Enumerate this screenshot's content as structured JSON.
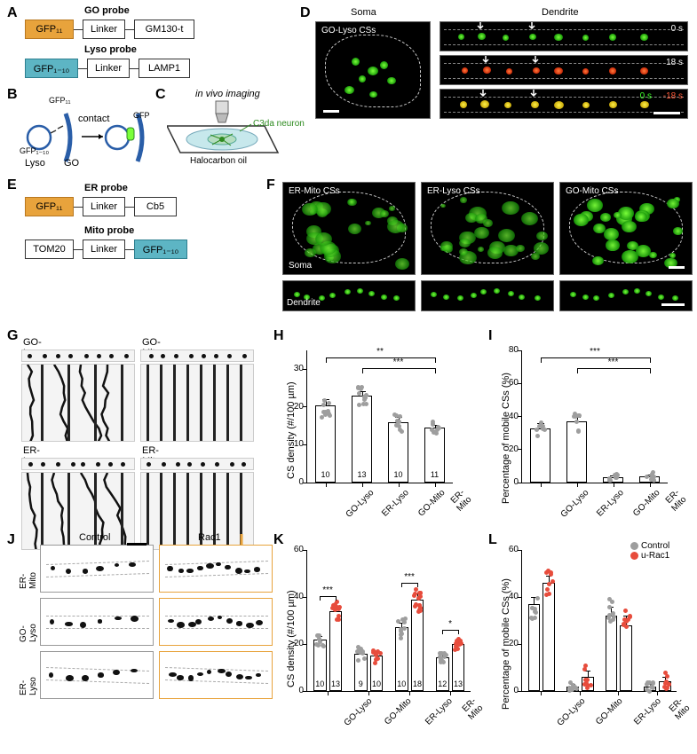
{
  "colors": {
    "probe_orange": "#e8a33c",
    "probe_teal": "#5db5c4",
    "green": "#3dff2a",
    "red": "#ff3a2a",
    "bar_gray": "#9e9e9e",
    "bar_red": "#e74c3c",
    "rac1_border": "#e8a33c"
  },
  "letters": {
    "A": "A",
    "B": "B",
    "C": "C",
    "D": "D",
    "E": "E",
    "F": "F",
    "G": "G",
    "H": "H",
    "I": "I",
    "J": "J",
    "K": "K",
    "L": "L"
  },
  "A": {
    "title_go": "GO probe",
    "title_lyso": "Lyso probe",
    "go_row": [
      "GFP₁₁",
      "Linker",
      "GM130-t"
    ],
    "lyso_row": [
      "GFP₁₋₁₀",
      "Linker",
      "LAMP1"
    ]
  },
  "B": {
    "lyso_label": "Lyso",
    "go_label": "GO",
    "contact": "contact",
    "gfp": "GFP",
    "gfp11": "GFP₁₁",
    "gfp110": "GFP₁₋₁₀"
  },
  "C": {
    "title": "in vivo imaging",
    "neuron": "C3da neuron",
    "oil": "Halocarbon oil"
  },
  "D": {
    "soma": "Soma",
    "dendrite": "Dendrite",
    "golyso": "GO-Lyso CSs",
    "t0": "0 s",
    "t18": "18 s",
    "merge0": "0 s",
    "merge18": "-18 s"
  },
  "E": {
    "title_er": "ER probe",
    "title_mito": "Mito probe",
    "er_row": [
      "GFP₁₁",
      "Linker",
      "Cb5"
    ],
    "mito_row": [
      "TOM20",
      "Linker",
      "GFP₁₋₁₀"
    ]
  },
  "F": {
    "panels": [
      "ER-Mito CSs",
      "ER-Lyso CSs",
      "GO-Mito CSs"
    ],
    "soma": "Soma",
    "dendrite": "Dendrite"
  },
  "G": {
    "titles": [
      "GO-Lyso",
      "GO-Mito",
      "ER-Lyso",
      "ER-Mito"
    ]
  },
  "H": {
    "ylabel": "CS density (#/100 µm)",
    "yticks": [
      0,
      10,
      20,
      30
    ],
    "ylim": [
      0,
      35
    ],
    "cats": [
      "GO-Lyso",
      "ER-Lyso",
      "GO-Mito",
      "ER-Mito"
    ],
    "vals": [
      20.5,
      23,
      16,
      14.5
    ],
    "errs": [
      1.5,
      1.2,
      1.3,
      0.8
    ],
    "n": [
      10,
      13,
      10,
      11
    ],
    "sig": [
      {
        "from": 0,
        "to": 2,
        "label": "**",
        "via": 3
      },
      {
        "from": 1,
        "to": 2,
        "label": "***",
        "via": 3
      }
    ]
  },
  "I": {
    "ylabel": "Percentage of mobile CSs (%)",
    "yticks": [
      0,
      20,
      40,
      60,
      80
    ],
    "ylim": [
      0,
      80
    ],
    "cats": [
      "GO-Lyso",
      "ER-Lyso",
      "GO-Mito",
      "ER-Mito"
    ],
    "vals": [
      33,
      37,
      3,
      3.5
    ],
    "errs": [
      3,
      3,
      1.5,
      1.5
    ],
    "sig": [
      {
        "from": 0,
        "to": 2,
        "label": "***",
        "via": 3
      },
      {
        "from": 1,
        "to": 2,
        "label": "***",
        "via": 3
      }
    ]
  },
  "J": {
    "rows": [
      "ER-Mito",
      "GO-Lyso",
      "ER-Lyso"
    ],
    "cols": [
      "Control",
      "Rac1"
    ]
  },
  "K": {
    "ylabel": "CS density (#/100 µm)",
    "yticks": [
      0,
      20,
      40,
      60
    ],
    "ylim": [
      0,
      60
    ],
    "cats": [
      "GO-Lyso",
      "GO-Mito",
      "ER-Lyso",
      "ER-Mito"
    ],
    "series": [
      "Control",
      "u-Rac1"
    ],
    "vals": [
      [
        22,
        34
      ],
      [
        16,
        15
      ],
      [
        27,
        39
      ],
      [
        14.5,
        20
      ]
    ],
    "errs": [
      [
        1.5,
        2
      ],
      [
        1.5,
        2
      ],
      [
        2.2,
        2.5
      ],
      [
        1.2,
        1.4
      ]
    ],
    "n": [
      [
        10,
        13
      ],
      [
        9,
        10
      ],
      [
        10,
        18
      ],
      [
        12,
        13
      ]
    ],
    "sig": [
      {
        "pair": 0,
        "label": "***"
      },
      {
        "pair": 2,
        "label": "***"
      },
      {
        "pair": 3,
        "label": "*"
      }
    ]
  },
  "L": {
    "ylabel": "Percentage of mobile CSs (%)",
    "yticks": [
      0,
      20,
      40,
      60
    ],
    "ylim": [
      0,
      60
    ],
    "cats": [
      "GO-Lyso",
      "GO-Mito",
      "ER-Lyso",
      "ER-Mito"
    ],
    "series": [
      "Control",
      "u-Rac1"
    ],
    "legend": {
      "control": "Control",
      "rac1": "u-Rac1"
    },
    "vals": [
      [
        37,
        46
      ],
      [
        2,
        6
      ],
      [
        32,
        28
      ],
      [
        2,
        4
      ]
    ],
    "errs": [
      [
        3,
        3
      ],
      [
        1,
        2.5
      ],
      [
        4,
        4
      ],
      [
        1,
        2
      ]
    ]
  }
}
